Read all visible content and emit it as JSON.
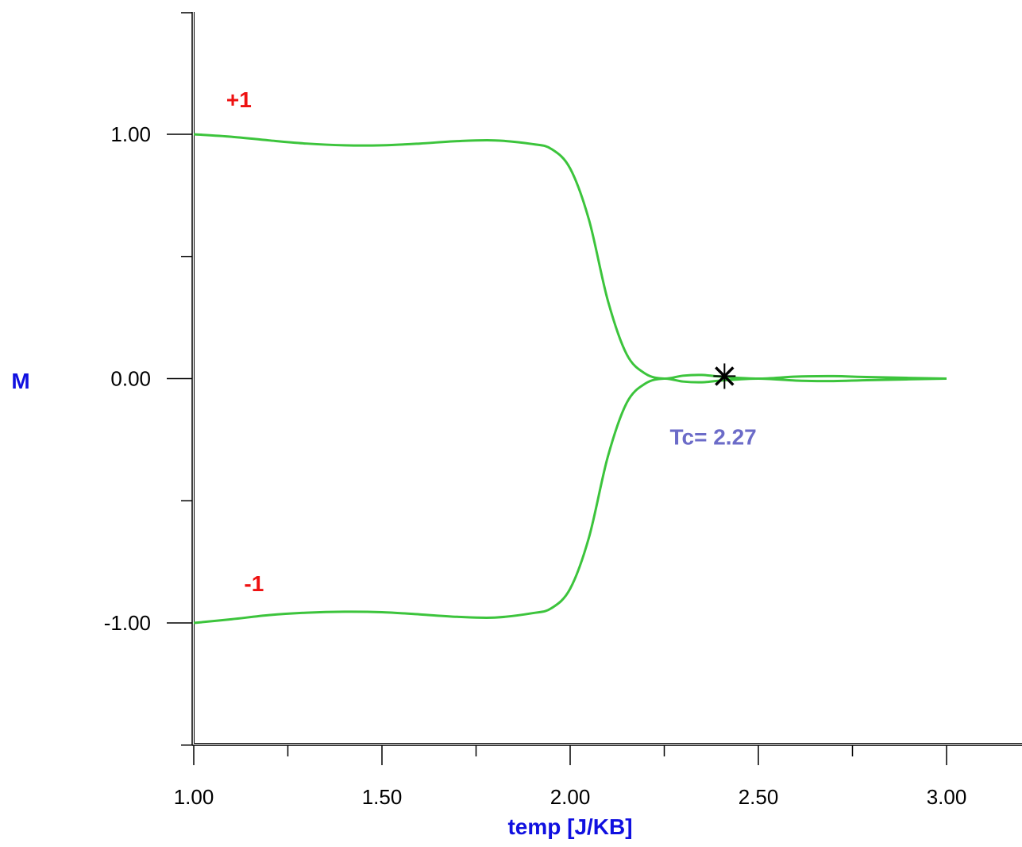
{
  "chart_data": {
    "type": "line",
    "title": "",
    "xlabel": "temp [J/KB]",
    "ylabel": "M",
    "xlim": [
      1.0,
      3.2
    ],
    "ylim": [
      -1.5,
      1.5
    ],
    "xticks": [
      1.0,
      1.5,
      2.0,
      2.5,
      3.0
    ],
    "xtick_labels": [
      "1.00",
      "1.50",
      "2.00",
      "2.50",
      "3.00"
    ],
    "xminor_ticks": [
      1.25,
      1.75,
      2.25,
      2.75
    ],
    "yticks": [
      -1.0,
      0.0,
      1.0
    ],
    "ytick_labels": [
      "-1.00",
      "0.00",
      "1.00"
    ],
    "yminor_ticks": [
      -1.5,
      -0.5,
      0.5,
      1.5
    ],
    "grid": false,
    "colors": {
      "series": "#3cc43c",
      "axis_title": "#1010e0",
      "series_label": "#ee1111",
      "annotation": "#6b6bc8",
      "marker": "#000000"
    },
    "series": [
      {
        "x": [
          1.0,
          1.1,
          1.2,
          1.3,
          1.4,
          1.5,
          1.6,
          1.7,
          1.8,
          1.9,
          1.95,
          2.0,
          2.05,
          2.1,
          2.15,
          2.2,
          2.25,
          2.3,
          2.35,
          2.4,
          2.5,
          2.6,
          2.7,
          2.8,
          3.0
        ],
        "y": [
          1.0,
          0.99,
          0.975,
          0.962,
          0.955,
          0.955,
          0.962,
          0.972,
          0.975,
          0.96,
          0.94,
          0.86,
          0.65,
          0.32,
          0.1,
          0.02,
          0.0,
          0.012,
          0.015,
          0.008,
          0.0,
          0.008,
          0.01,
          0.006,
          0.0
        ]
      },
      {
        "x": [
          1.0,
          1.1,
          1.2,
          1.3,
          1.4,
          1.5,
          1.6,
          1.7,
          1.8,
          1.9,
          1.95,
          2.0,
          2.05,
          2.1,
          2.15,
          2.2,
          2.25,
          2.3,
          2.35,
          2.4,
          2.5,
          2.6,
          2.7,
          2.8,
          3.0
        ],
        "y": [
          -1.0,
          -0.985,
          -0.968,
          -0.958,
          -0.954,
          -0.956,
          -0.965,
          -0.975,
          -0.978,
          -0.96,
          -0.94,
          -0.86,
          -0.65,
          -0.32,
          -0.1,
          -0.02,
          0.0,
          -0.012,
          -0.015,
          -0.008,
          0.0,
          -0.008,
          -0.01,
          -0.006,
          0.0
        ]
      }
    ],
    "series_labels": [
      {
        "text": "+1",
        "x": 1.12,
        "y": 1.11
      },
      {
        "text": "-1",
        "x": 1.16,
        "y": -0.87
      }
    ],
    "marker": {
      "x": 2.41,
      "y": 0.01,
      "shape": "star"
    },
    "annotations": [
      {
        "text": "Tc= 2.27",
        "x": 2.38,
        "y": -0.27
      }
    ]
  }
}
